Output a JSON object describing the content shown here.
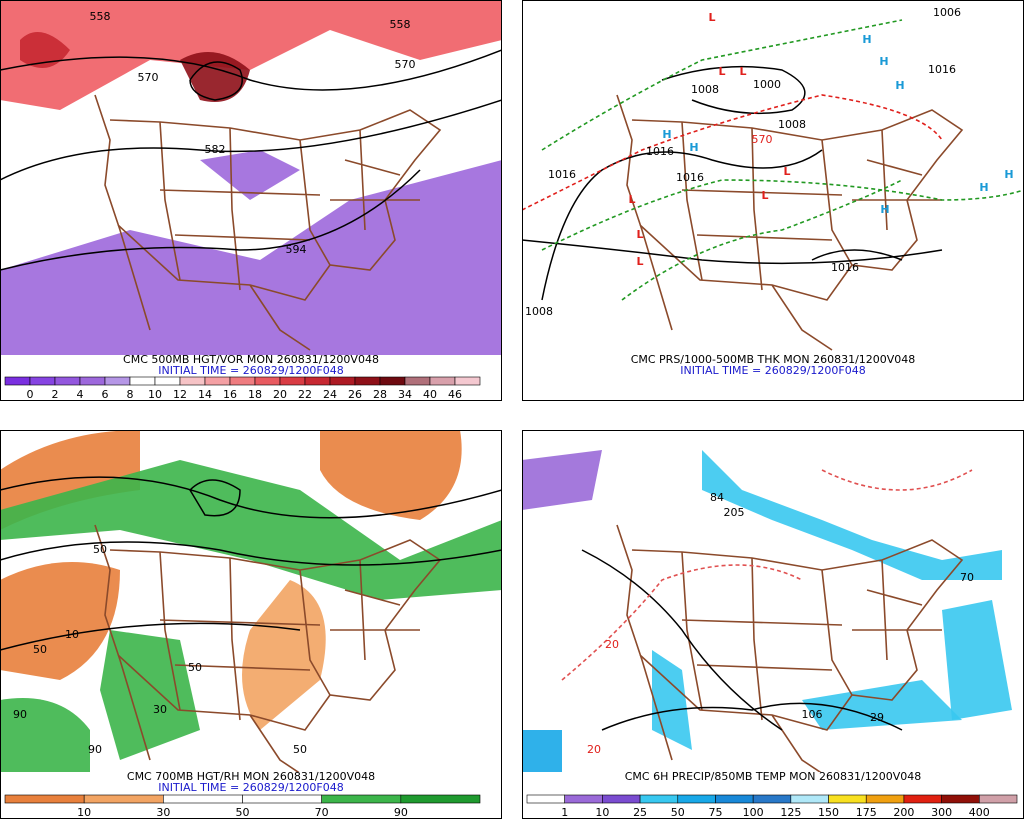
{
  "panels": [
    {
      "caption": "CMC 500MB HGT/VOR MON 260831/1200V048",
      "initial_time": "INITIAL TIME = 260829/1200F048",
      "colorbar": {
        "labels": [
          "0",
          "2",
          "4",
          "6",
          "8",
          "10",
          "12",
          "14",
          "16",
          "18",
          "20",
          "22",
          "24",
          "26",
          "28",
          "34",
          "40",
          "46"
        ],
        "colors": [
          "#7a2fe0",
          "#8644e2",
          "#9357de",
          "#9d68dc",
          "#b596e6",
          "#ffffff",
          "#ffffff",
          "#f6c3c6",
          "#f4a0a4",
          "#ef7c80",
          "#e85a60",
          "#d93c44",
          "#c72832",
          "#ad1a24",
          "#8e1018",
          "#6e0a10",
          "#b0707a",
          "#d8a0ab",
          "#f4c8d0"
        ]
      },
      "contour_labels": [
        {
          "text": "558",
          "color": "#000000"
        },
        {
          "text": "570",
          "color": "#000000"
        },
        {
          "text": "558",
          "color": "#000000"
        },
        {
          "text": "570",
          "color": "#000000"
        },
        {
          "text": "582",
          "color": "#000000"
        },
        {
          "text": "594",
          "color": "#000000"
        }
      ]
    },
    {
      "caption": "CMC PRS/1000-500MB THK MON 260831/1200V048",
      "initial_time": "INITIAL TIME = 260829/1200F048",
      "contour_labels": [
        {
          "text": "1008",
          "color": "#000000"
        },
        {
          "text": "1000",
          "color": "#000000"
        },
        {
          "text": "1016",
          "color": "#000000"
        },
        {
          "text": "1016",
          "color": "#000000"
        },
        {
          "text": "1016",
          "color": "#000000"
        },
        {
          "text": "1008",
          "color": "#000000"
        },
        {
          "text": "570",
          "color": "#e0201c"
        },
        {
          "text": "1016",
          "color": "#000000"
        },
        {
          "text": "1008",
          "color": "#000000"
        },
        {
          "text": "1016",
          "color": "#000000"
        },
        {
          "text": "1006",
          "color": "#000000"
        },
        {
          "text": "L",
          "color": "#e0201c"
        },
        {
          "text": "L",
          "color": "#e0201c"
        },
        {
          "text": "L",
          "color": "#e0201c"
        },
        {
          "text": "L",
          "color": "#e0201c"
        },
        {
          "text": "L",
          "color": "#e0201c"
        },
        {
          "text": "L",
          "color": "#e0201c"
        },
        {
          "text": "L",
          "color": "#e0201c"
        },
        {
          "text": "L",
          "color": "#e0201c"
        },
        {
          "text": "H",
          "color": "#1a9ad6"
        },
        {
          "text": "H",
          "color": "#1a9ad6"
        },
        {
          "text": "H",
          "color": "#1a9ad6"
        },
        {
          "text": "H",
          "color": "#1a9ad6"
        },
        {
          "text": "H",
          "color": "#1a9ad6"
        },
        {
          "text": "H",
          "color": "#1a9ad6"
        },
        {
          "text": "H",
          "color": "#1a9ad6"
        },
        {
          "text": "H",
          "color": "#1a9ad6"
        }
      ]
    },
    {
      "caption": "CMC 700MB HGT/RH MON 260831/1200V048",
      "initial_time": "INITIAL TIME = 260829/1200F048",
      "colorbar": {
        "labels": [
          "10",
          "30",
          "50",
          "70",
          "90"
        ],
        "colors": [
          "#e8803c",
          "#f2a463",
          "#ffffff",
          "#ffffff",
          "#3cb54a",
          "#1f9a2f"
        ]
      },
      "contour_labels": [
        {
          "text": "50",
          "color": "#000000"
        },
        {
          "text": "10",
          "color": "#000000"
        },
        {
          "text": "50",
          "color": "#000000"
        },
        {
          "text": "50",
          "color": "#000000"
        },
        {
          "text": "30",
          "color": "#000000"
        },
        {
          "text": "90",
          "color": "#000000"
        },
        {
          "text": "50",
          "color": "#000000"
        },
        {
          "text": "90",
          "color": "#000000"
        }
      ]
    },
    {
      "caption": "CMC 6H PRECIP/850MB TEMP MON 260831/1200V048",
      "initial_time": null,
      "colorbar": {
        "labels": [
          "1",
          "10",
          "25",
          "50",
          "75",
          "100",
          "125",
          "150",
          "175",
          "200",
          "300",
          "400"
        ],
        "colors": [
          "#ffffff",
          "#9a6ad8",
          "#7a4cd0",
          "#38c8f0",
          "#18a8e8",
          "#1888d8",
          "#2878c8",
          "#b0e8f8",
          "#f8e020",
          "#f0a010",
          "#e02010",
          "#901008",
          "#d0a0a8"
        ]
      },
      "contour_labels": [
        {
          "text": "205",
          "color": "#000000"
        },
        {
          "text": "84",
          "color": "#000000"
        },
        {
          "text": "106",
          "color": "#000000"
        },
        {
          "text": "29",
          "color": "#000000"
        },
        {
          "text": "70",
          "color": "#000000"
        },
        {
          "text": "20",
          "color": "#e0201c"
        },
        {
          "text": "20",
          "color": "#e0201c"
        }
      ]
    }
  ]
}
